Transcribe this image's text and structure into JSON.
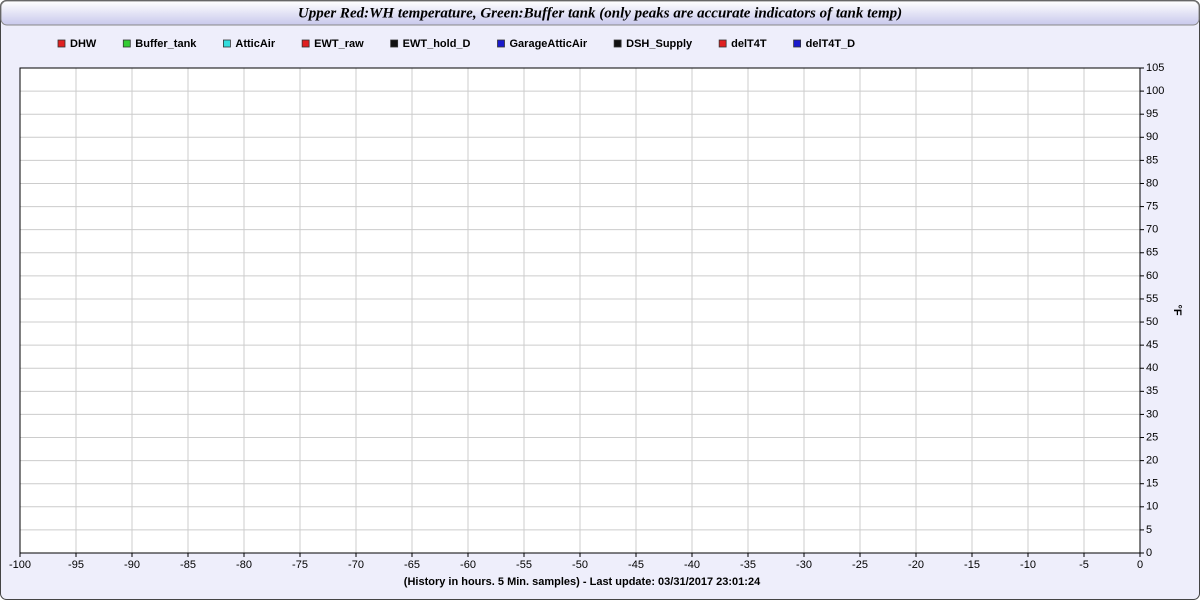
{
  "chart_data": {
    "type": "line",
    "title": "Upper Red:WH temperature, Green:Buffer tank (only peaks are accurate indicators of tank temp)",
    "x_label": "(History in hours. 5 Min. samples) - Last update: 03/31/2017 23:01:24",
    "y_label": "°F",
    "y_axis_side": "right",
    "grid": true,
    "series": [
      {
        "name": "DHW",
        "color": "#e02020"
      },
      {
        "name": "Buffer_tank",
        "color": "#33cc33"
      },
      {
        "name": "AtticAir",
        "color": "#33dddd"
      },
      {
        "name": "EWT_raw",
        "color": "#e02020"
      },
      {
        "name": "EWT_hold_D",
        "color": "#111111"
      },
      {
        "name": "GarageAtticAir",
        "color": "#1a1acc"
      },
      {
        "name": "DSH_Supply",
        "color": "#111111"
      },
      {
        "name": "delT4T",
        "color": "#e02020"
      },
      {
        "name": "delT4T_D",
        "color": "#1a1acc"
      }
    ],
    "xlim": [
      -100,
      0
    ],
    "xticks": [
      -100,
      -95,
      -90,
      -85,
      -80,
      -75,
      -70,
      -65,
      -60,
      -55,
      -50,
      -45,
      -40,
      -35,
      -30,
      -25,
      -20,
      -15,
      -10,
      -5,
      0
    ],
    "ylim": [
      0,
      105
    ],
    "yticks": [
      0,
      5,
      10,
      15,
      20,
      25,
      30,
      35,
      40,
      45,
      50,
      55,
      60,
      65,
      70,
      75,
      80,
      85,
      90,
      95,
      100,
      105
    ]
  }
}
